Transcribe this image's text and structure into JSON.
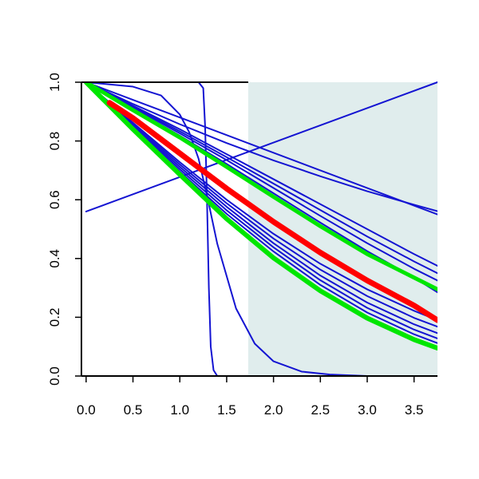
{
  "chart_data": {
    "type": "line",
    "title": "",
    "xlabel": "",
    "ylabel": "",
    "xlim": [
      -0.05,
      3.75
    ],
    "ylim": [
      0.0,
      1.0
    ],
    "x_ticks": [
      "0.0",
      "0.5",
      "1.0",
      "1.5",
      "2.0",
      "2.5",
      "3.0",
      "3.5"
    ],
    "y_ticks": [
      "0.0",
      "0.2",
      "0.4",
      "0.6",
      "0.8",
      "1.0"
    ],
    "shaded_region": {
      "x_start": 1.73,
      "x_end": 3.75,
      "color": "#e0eded"
    },
    "colors": {
      "blue": "#1414d2",
      "red": "#ff0000",
      "green": "#00e600",
      "axis": "#000000"
    },
    "series": [
      {
        "color": "blue",
        "width": 2,
        "x": [
          0,
          3.75
        ],
        "y": [
          0.56,
          1.0
        ]
      },
      {
        "color": "blue",
        "width": 2,
        "x": [
          0,
          3.75
        ],
        "y": [
          1.0,
          0.55
        ]
      },
      {
        "color": "blue",
        "width": 2,
        "x": [
          0,
          0.5,
          0.8,
          1.0,
          1.1,
          1.2,
          1.3,
          1.4,
          1.6,
          1.8,
          2.0,
          2.3,
          2.6,
          3.0,
          3.75
        ],
        "y": [
          1.0,
          0.985,
          0.955,
          0.89,
          0.83,
          0.74,
          0.6,
          0.45,
          0.23,
          0.11,
          0.05,
          0.015,
          0.005,
          0.0,
          0.0
        ]
      },
      {
        "color": "blue",
        "width": 2,
        "x": [
          0,
          1.0,
          1.2,
          1.25,
          1.27,
          1.29,
          1.31,
          1.33,
          1.36,
          1.4,
          1.5,
          3.75
        ],
        "y": [
          1.0,
          1.0,
          1.0,
          0.98,
          0.85,
          0.6,
          0.3,
          0.1,
          0.02,
          0.0,
          0.0,
          0.0
        ]
      },
      {
        "color": "blue",
        "width": 2,
        "x": [
          0,
          0.5,
          1.0,
          1.5,
          2.0,
          2.5,
          3.0,
          3.5,
          3.75
        ],
        "y": [
          1.0,
          0.926,
          0.857,
          0.793,
          0.734,
          0.68,
          0.629,
          0.583,
          0.561
        ]
      },
      {
        "color": "blue",
        "width": 2,
        "x": [
          0,
          0.5,
          1.0,
          1.5,
          2.0,
          2.5,
          3.0,
          3.5,
          3.75
        ],
        "y": [
          1.0,
          0.92,
          0.84,
          0.755,
          0.67,
          0.585,
          0.5,
          0.415,
          0.375
        ]
      },
      {
        "color": "blue",
        "width": 2,
        "x": [
          0,
          0.5,
          1.0,
          1.5,
          2.0,
          2.5,
          3.0,
          3.5,
          3.75
        ],
        "y": [
          1.0,
          0.917,
          0.833,
          0.745,
          0.655,
          0.565,
          0.475,
          0.39,
          0.35
        ]
      },
      {
        "color": "blue",
        "width": 2,
        "x": [
          0,
          0.5,
          1.0,
          1.5,
          2.0,
          2.5,
          3.0,
          3.5,
          3.75
        ],
        "y": [
          1.0,
          0.914,
          0.826,
          0.735,
          0.64,
          0.545,
          0.452,
          0.365,
          0.325
        ]
      },
      {
        "color": "blue",
        "width": 2,
        "x": [
          0,
          0.5,
          1.0,
          1.5,
          2.0,
          2.5,
          3.0,
          3.5,
          3.75
        ],
        "y": [
          1.0,
          0.91,
          0.818,
          0.722,
          0.622,
          0.522,
          0.425,
          0.335,
          0.285
        ]
      },
      {
        "color": "blue",
        "width": 2,
        "x": [
          0,
          0.5,
          1.0,
          1.5,
          2.0,
          2.5,
          3.0,
          3.5,
          3.75
        ],
        "y": [
          1.0,
          0.862,
          0.728,
          0.6,
          0.484,
          0.382,
          0.295,
          0.222,
          0.19
        ]
      },
      {
        "color": "blue",
        "width": 2,
        "x": [
          0,
          0.5,
          1.0,
          1.5,
          2.0,
          2.5,
          3.0,
          3.5,
          3.75
        ],
        "y": [
          1.0,
          0.858,
          0.72,
          0.588,
          0.468,
          0.362,
          0.272,
          0.198,
          0.168
        ]
      },
      {
        "color": "blue",
        "width": 2,
        "x": [
          0,
          0.5,
          1.0,
          1.5,
          2.0,
          2.5,
          3.0,
          3.5,
          3.75
        ],
        "y": [
          1.0,
          0.854,
          0.712,
          0.576,
          0.452,
          0.342,
          0.25,
          0.176,
          0.146
        ]
      },
      {
        "color": "blue",
        "width": 2,
        "x": [
          0,
          0.5,
          1.0,
          1.5,
          2.0,
          2.5,
          3.0,
          3.5,
          3.75
        ],
        "y": [
          1.0,
          0.85,
          0.704,
          0.564,
          0.438,
          0.326,
          0.232,
          0.158,
          0.128
        ]
      },
      {
        "color": "blue",
        "width": 2,
        "x": [
          0,
          0.5,
          1.0,
          1.5,
          2.0,
          2.5,
          3.0,
          3.5,
          3.75
        ],
        "y": [
          1.0,
          0.846,
          0.696,
          0.552,
          0.424,
          0.31,
          0.216,
          0.142,
          0.112
        ]
      },
      {
        "color": "green",
        "width": 5,
        "x": [
          0,
          0.5,
          1.0,
          1.5,
          2.0,
          2.5,
          3.0,
          3.5,
          3.75
        ],
        "y": [
          1.0,
          0.905,
          0.812,
          0.712,
          0.61,
          0.51,
          0.415,
          0.335,
          0.295
        ]
      },
      {
        "color": "green",
        "width": 6,
        "x": [
          0,
          0.5,
          1.0,
          1.5,
          2.0,
          2.5,
          3.0,
          3.5,
          3.75
        ],
        "y": [
          1.0,
          0.84,
          0.686,
          0.535,
          0.402,
          0.29,
          0.197,
          0.124,
          0.095
        ]
      },
      {
        "color": "red",
        "width": 7,
        "x": [
          0.25,
          0.5,
          1.0,
          1.5,
          2.0,
          2.5,
          3.0,
          3.5,
          3.75
        ],
        "y": [
          0.93,
          0.878,
          0.758,
          0.638,
          0.525,
          0.42,
          0.325,
          0.24,
          0.19
        ]
      }
    ]
  }
}
